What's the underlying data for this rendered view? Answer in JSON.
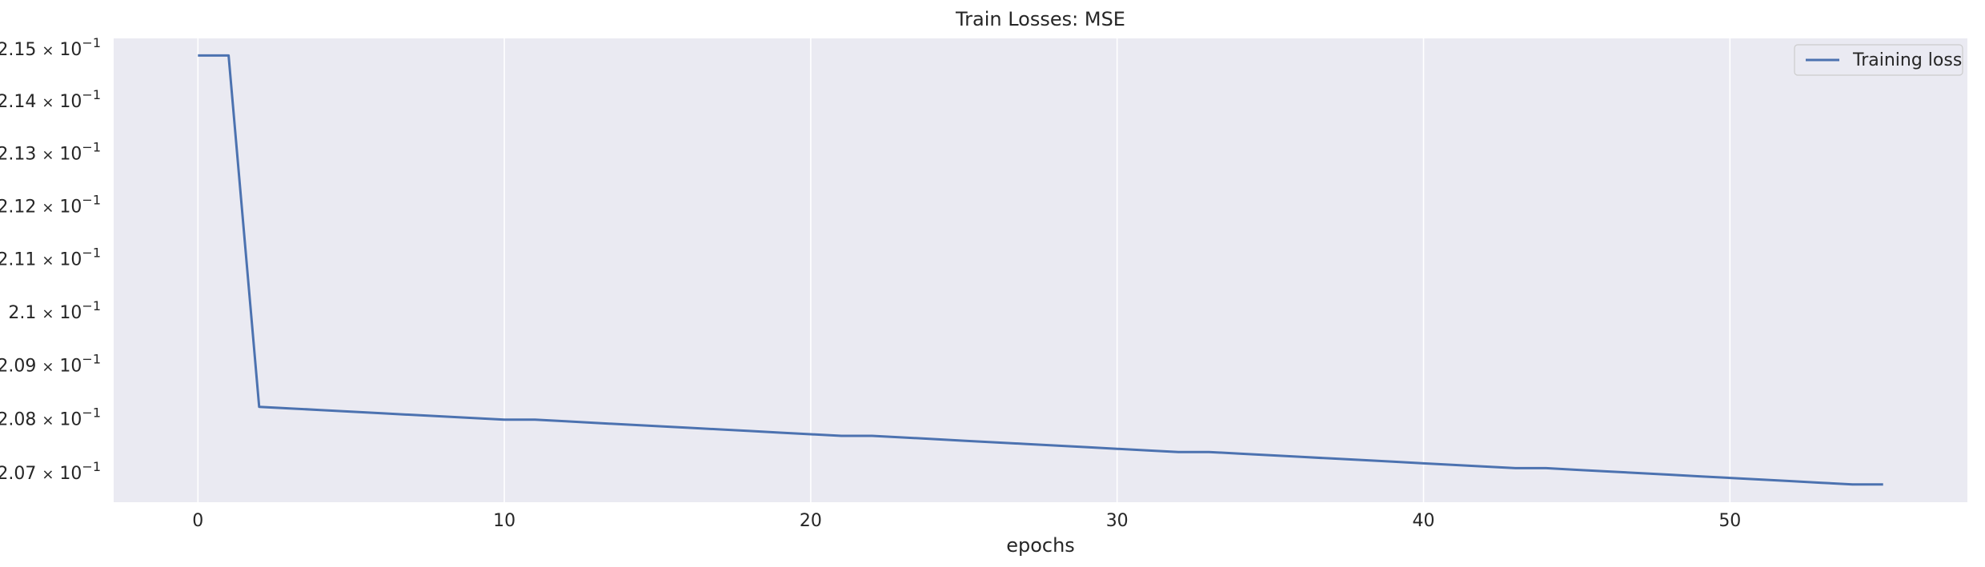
{
  "chart_data": {
    "type": "line",
    "title": "Train Losses:  MSE",
    "xlabel": "epochs",
    "ylabel": "",
    "xlim": [
      -2.75,
      57.75
    ],
    "ylim": [
      0.20645,
      0.2152
    ],
    "yscale": "log",
    "grid": "vertical",
    "legend_position": "top-right",
    "colors": {
      "plot_background": "#eaeaf2",
      "line": "#4c72b0",
      "grid": "#ffffff",
      "legend_border": "#cccccc"
    },
    "x_ticks": [
      0,
      10,
      20,
      30,
      40,
      50
    ],
    "x_tick_labels": [
      "0",
      "10",
      "20",
      "30",
      "40",
      "50"
    ],
    "y_ticks": [
      {
        "value": 0.215,
        "mantissa": "2.15"
      },
      {
        "value": 0.214,
        "mantissa": "2.14"
      },
      {
        "value": 0.213,
        "mantissa": "2.13"
      },
      {
        "value": 0.212,
        "mantissa": "2.12"
      },
      {
        "value": 0.211,
        "mantissa": "2.11"
      },
      {
        "value": 0.21,
        "mantissa": "2.1"
      },
      {
        "value": 0.209,
        "mantissa": "2.09"
      },
      {
        "value": 0.208,
        "mantissa": "2.08"
      },
      {
        "value": 0.207,
        "mantissa": "2.07"
      }
    ],
    "y_tick_base": "10",
    "y_tick_exponent": "−1",
    "y_tick_times": "×",
    "series": [
      {
        "name": "Training loss",
        "x": [
          0,
          1,
          2,
          3,
          4,
          5,
          6,
          7,
          8,
          9,
          10,
          11,
          12,
          13,
          14,
          15,
          16,
          17,
          18,
          19,
          20,
          21,
          22,
          23,
          24,
          25,
          26,
          27,
          28,
          29,
          30,
          31,
          32,
          33,
          34,
          35,
          36,
          37,
          38,
          39,
          40,
          41,
          42,
          43,
          44,
          45,
          46,
          47,
          48,
          49,
          50,
          51,
          52,
          53,
          54,
          55
        ],
        "y": [
          0.21487,
          0.21487,
          0.20822,
          0.20819,
          0.20816,
          0.20813,
          0.2081,
          0.20807,
          0.20804,
          0.20801,
          0.20798,
          0.20798,
          0.20795,
          0.20792,
          0.20789,
          0.20786,
          0.20783,
          0.2078,
          0.20777,
          0.20774,
          0.20771,
          0.20768,
          0.20768,
          0.20765,
          0.20762,
          0.20759,
          0.20756,
          0.20753,
          0.2075,
          0.20747,
          0.20744,
          0.20741,
          0.20738,
          0.20738,
          0.20735,
          0.20732,
          0.20729,
          0.20726,
          0.20723,
          0.2072,
          0.20717,
          0.20714,
          0.20711,
          0.20708,
          0.20708,
          0.20705,
          0.20702,
          0.20699,
          0.20696,
          0.20693,
          0.2069,
          0.20687,
          0.20684,
          0.20681,
          0.20678,
          0.20678
        ]
      }
    ]
  }
}
